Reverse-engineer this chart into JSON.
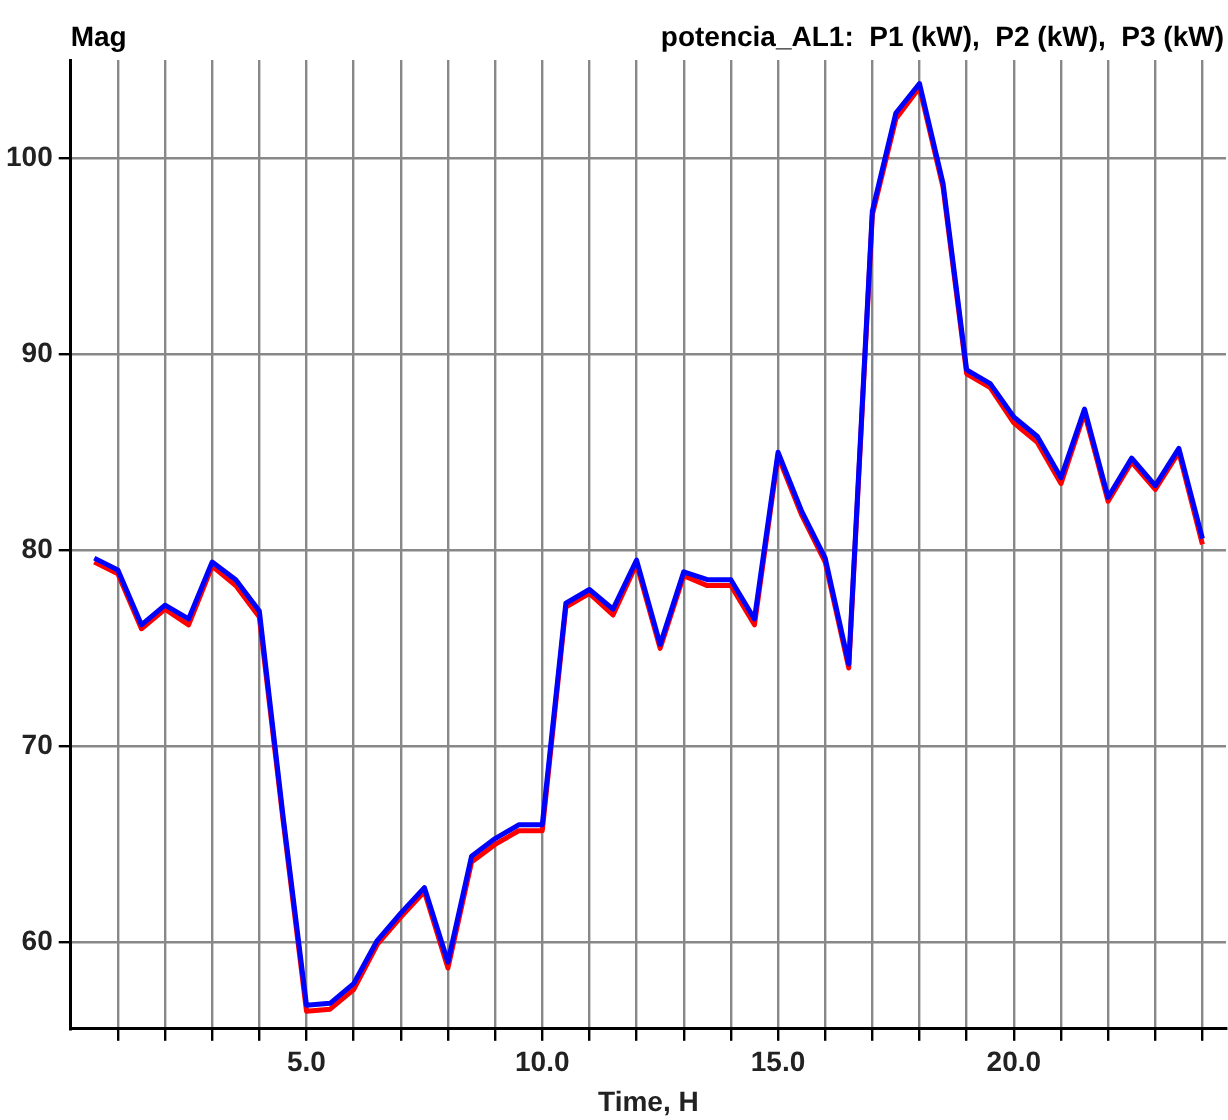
{
  "chart_data": {
    "type": "line",
    "title": "potencia_AL1:  P1 (kW),  P2 (kW),  P3 (kW)",
    "ylabel": "Mag",
    "xlabel": "Time, H",
    "x": [
      0.5,
      1,
      1.5,
      2,
      2.5,
      3,
      3.5,
      4,
      4.5,
      5,
      5.5,
      6,
      6.5,
      7,
      7.5,
      8,
      8.5,
      9,
      9.5,
      10,
      10.5,
      11,
      11.5,
      12,
      12.5,
      13,
      13.5,
      14,
      14.5,
      15,
      15.5,
      16,
      16.5,
      17,
      17.5,
      18,
      18.5,
      19,
      19.5,
      20,
      20.5,
      21,
      21.5,
      22,
      22.5,
      23,
      23.5,
      24
    ],
    "series": [
      {
        "color": "#0000ff",
        "values": [
          79.6,
          79.0,
          76.2,
          77.2,
          76.5,
          79.4,
          78.5,
          76.9,
          66.5,
          56.8,
          56.9,
          57.9,
          60.1,
          61.5,
          62.8,
          59.0,
          64.4,
          65.3,
          66.0,
          66.0,
          77.3,
          78.0,
          77.0,
          79.5,
          75.2,
          78.9,
          78.5,
          78.5,
          76.5,
          85.0,
          82.0,
          79.6,
          74.2,
          97.3,
          102.3,
          103.8,
          98.7,
          89.2,
          88.5,
          86.8,
          85.8,
          83.7,
          87.2,
          82.7,
          84.7,
          83.3,
          85.2,
          80.6
        ]
      },
      {
        "color": "#ff0000",
        "values": [
          79.4,
          78.8,
          76.0,
          77.0,
          76.2,
          79.2,
          78.2,
          76.6,
          66.3,
          56.5,
          56.6,
          57.6,
          59.9,
          61.3,
          62.6,
          58.7,
          64.1,
          65.0,
          65.7,
          65.7,
          77.1,
          77.8,
          76.7,
          79.3,
          75.0,
          78.7,
          78.2,
          78.2,
          76.2,
          84.8,
          81.8,
          79.4,
          74.0,
          97.1,
          102.0,
          103.6,
          98.5,
          89.0,
          88.3,
          86.5,
          85.5,
          83.4,
          87.0,
          82.5,
          84.5,
          83.1,
          85.0,
          80.3
        ]
      }
    ],
    "xlim": [
      0,
      24.5
    ],
    "xticks": [
      {
        "value": 1,
        "label": null
      },
      {
        "value": 2,
        "label": null
      },
      {
        "value": 3,
        "label": null
      },
      {
        "value": 4,
        "label": null
      },
      {
        "value": 5,
        "label": "5.0"
      },
      {
        "value": 6,
        "label": null
      },
      {
        "value": 7,
        "label": null
      },
      {
        "value": 8,
        "label": null
      },
      {
        "value": 9,
        "label": null
      },
      {
        "value": 10,
        "label": "10.0"
      },
      {
        "value": 11,
        "label": null
      },
      {
        "value": 12,
        "label": null
      },
      {
        "value": 13,
        "label": null
      },
      {
        "value": 14,
        "label": null
      },
      {
        "value": 15,
        "label": "15.0"
      },
      {
        "value": 16,
        "label": null
      },
      {
        "value": 17,
        "label": null
      },
      {
        "value": 18,
        "label": null
      },
      {
        "value": 19,
        "label": null
      },
      {
        "value": 20,
        "label": "20.0"
      },
      {
        "value": 21,
        "label": null
      },
      {
        "value": 22,
        "label": null
      },
      {
        "value": 23,
        "label": null
      },
      {
        "value": 24,
        "label": null
      }
    ],
    "ylim": [
      55.6,
      105
    ],
    "yticks": [
      60,
      70,
      80,
      90,
      100
    ],
    "grid": true,
    "marker": "none",
    "line_style": "solid"
  }
}
